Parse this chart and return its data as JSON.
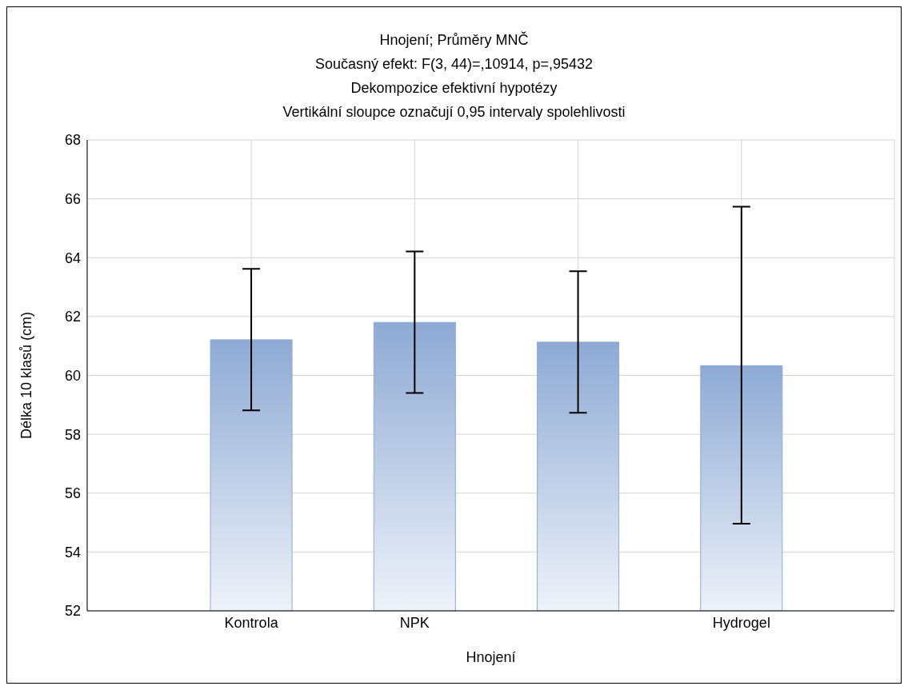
{
  "chart_data": {
    "type": "bar",
    "title": "Hnojení; Průměry MNČ",
    "subtitle": "Současný efekt: F(3, 44)=,10914, p=,95432\nDekompozice efektivní hypotézy\nVertikální sloupce označují 0,95 intervaly spolehlivosti",
    "xlabel": "Hnojení",
    "ylabel": "Délka 10 klasů (cm)",
    "categories": [
      "Kontrola",
      "NPK",
      null,
      "Hydrogel"
    ],
    "values": [
      61.21,
      61.8,
      61.13,
      60.33
    ],
    "errors": [
      [
        58.81,
        63.62
      ],
      [
        59.4,
        64.21
      ],
      [
        58.73,
        63.54
      ],
      [
        54.96,
        65.73
      ]
    ],
    "color": "#8eaad4",
    "ylim": [
      52,
      68
    ],
    "yticks": [
      52,
      54,
      56,
      58,
      60,
      62,
      64,
      66,
      68
    ],
    "grid": true
  }
}
